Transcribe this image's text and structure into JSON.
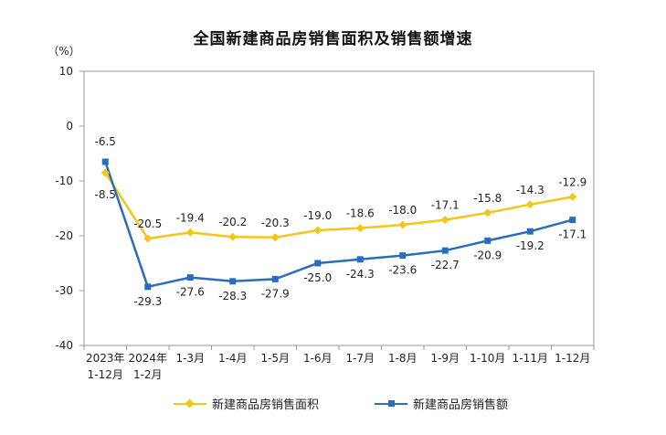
{
  "chart_data": {
    "type": "line",
    "title": "全国新建商品房销售面积及销售额增速",
    "unit_label": "（%）",
    "categories": [
      [
        "2023年",
        "1-12月"
      ],
      [
        "2024年",
        "1-2月"
      ],
      [
        "1-3月"
      ],
      [
        "1-4月"
      ],
      [
        "1-5月"
      ],
      [
        "1-6月"
      ],
      [
        "1-7月"
      ],
      [
        "1-8月"
      ],
      [
        "1-9月"
      ],
      [
        "1-10月"
      ],
      [
        "1-11月"
      ],
      [
        "1-12月"
      ]
    ],
    "ylim": [
      -40,
      10
    ],
    "yticks": [
      10,
      0,
      -10,
      -20,
      -30,
      -40
    ],
    "grid": false,
    "legend_position": "bottom",
    "series": [
      {
        "name": "新建商品房销售面积",
        "color": "#F5C518",
        "marker": "diamond",
        "values": [
          -8.5,
          -20.5,
          -19.4,
          -20.2,
          -20.3,
          -19.0,
          -18.6,
          -18.0,
          -17.1,
          -15.8,
          -14.3,
          -12.9
        ],
        "labels": [
          "-8.5",
          "-20.5",
          "-19.4",
          "-20.2",
          "-20.3",
          "-19.0",
          "-18.6",
          "-18.0",
          "-17.1",
          "-15.8",
          "-14.3",
          "-12.9"
        ]
      },
      {
        "name": "新建商品房销售额",
        "color": "#2A6EBB",
        "marker": "square",
        "values": [
          -6.5,
          -29.3,
          -27.6,
          -28.3,
          -27.9,
          -25.0,
          -24.3,
          -23.6,
          -22.7,
          -20.9,
          -19.2,
          -17.1
        ],
        "labels": [
          "-6.5",
          "-29.3",
          "-27.6",
          "-28.3",
          "-27.9",
          "-25.0",
          "-24.3",
          "-23.6",
          "-22.7",
          "-20.9",
          "-19.2",
          "-17.1"
        ]
      }
    ]
  }
}
